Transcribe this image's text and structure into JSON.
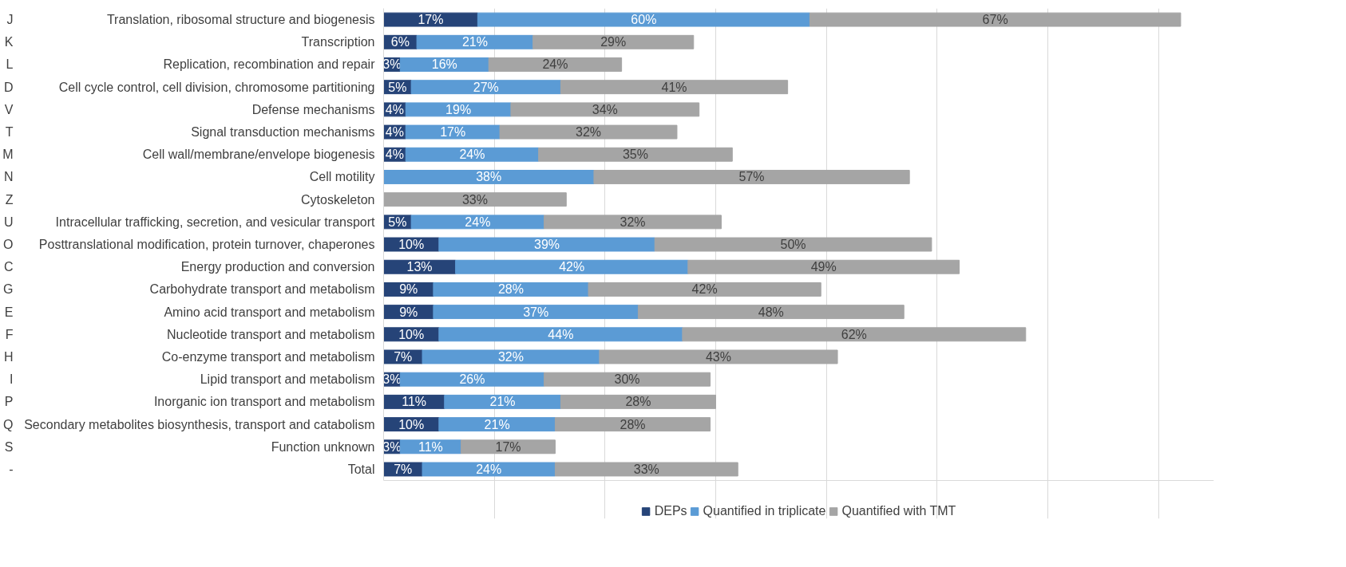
{
  "chart_data": {
    "type": "bar",
    "orientation": "horizontal",
    "stacked": true,
    "categories": [
      "Translation, ribosomal structure and biogenesis",
      "Transcription",
      "Replication, recombination and repair",
      "Cell cycle control, cell division, chromosome partitioning",
      "Defense mechanisms",
      "Signal transduction mechanisms",
      "Cell wall/membrane/envelope biogenesis",
      "Cell motility",
      "Cytoskeleton",
      "Intracellular trafficking, secretion, and vesicular transport",
      "Posttranslational modification, protein turnover, chaperones",
      "Energy production and conversion",
      "Carbohydrate transport and metabolism",
      "Amino acid transport and metabolism",
      "Nucleotide transport and metabolism",
      "Co-enzyme transport and metabolism",
      "Lipid transport and metabolism",
      "Inorganic ion transport and metabolism",
      "Secondary metabolites biosynthesis, transport and catabolism",
      "Function unknown",
      "Total"
    ],
    "y2_categories": [
      "J",
      "K",
      "L",
      "D",
      "V",
      "T",
      "M",
      "N",
      "Z",
      "U",
      "O",
      "C",
      "G",
      "E",
      "F",
      "H",
      "I",
      "P",
      "Q",
      "S",
      "-"
    ],
    "series": [
      {
        "name": "DEPs",
        "color": "#264478",
        "values": [
          17,
          6,
          3,
          5,
          4,
          4,
          4,
          null,
          null,
          5,
          10,
          13,
          9,
          9,
          10,
          7,
          3,
          11,
          10,
          3,
          7
        ],
        "value_labels": [
          "17%",
          "6%",
          "3%",
          "5%",
          "4%",
          "4%",
          "4%",
          null,
          null,
          "5%",
          "10%",
          "13%",
          "9%",
          "9%",
          "10%",
          "7%",
          "3%",
          "11%",
          "10%",
          "3%",
          "7%"
        ]
      },
      {
        "name": "Quantified in triplicate",
        "color": "#5b9bd5",
        "values": [
          60,
          21,
          16,
          27,
          19,
          17,
          24,
          38,
          null,
          24,
          39,
          42,
          28,
          37,
          44,
          32,
          26,
          21,
          21,
          11,
          24
        ],
        "value_labels": [
          "60%",
          "21%",
          "16%",
          "27%",
          "19%",
          "17%",
          "24%",
          "38%",
          null,
          "24%",
          "39%",
          "42%",
          "28%",
          "37%",
          "44%",
          "32%",
          "26%",
          "21%",
          "21%",
          "11%",
          "24%"
        ]
      },
      {
        "name": "Quantified with TMT",
        "color": "#a5a5a5",
        "values": [
          67,
          29,
          24,
          41,
          34,
          32,
          35,
          57,
          33,
          32,
          50,
          49,
          42,
          48,
          62,
          43,
          30,
          28,
          28,
          17,
          33
        ],
        "value_labels": [
          "67%",
          "29%",
          "24%",
          "41%",
          "34%",
          "32%",
          "35%",
          "57%",
          "33%",
          "32%",
          "50%",
          "49%",
          "42%",
          "48%",
          "62%",
          "43%",
          "30%",
          "28%",
          "28%",
          "17%",
          "33%"
        ]
      }
    ],
    "xlim": [
      0,
      150
    ],
    "xticks": [
      {
        "value": 0,
        "label": null
      },
      {
        "value": 20,
        "label": null
      },
      {
        "value": 40,
        "label": null
      },
      {
        "value": 60,
        "label": null
      },
      {
        "value": 80,
        "label": null
      },
      {
        "value": 100,
        "label": null
      },
      {
        "value": 120,
        "label": null
      },
      {
        "value": 140,
        "label": null
      }
    ],
    "tick_labels": "y",
    "grid": "x",
    "legend": "bottom"
  }
}
